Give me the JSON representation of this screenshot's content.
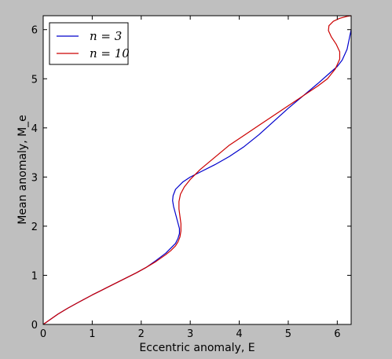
{
  "chart_data": {
    "type": "line",
    "title": "",
    "xlabel": "Eccentric anomaly, E",
    "ylabel": "Mean anomaly, M_e",
    "xlim": [
      0,
      6.2832
    ],
    "ylim": [
      0,
      6.2832
    ],
    "xticks": [
      0,
      1,
      2,
      3,
      4,
      5,
      6
    ],
    "yticks": [
      0,
      1,
      2,
      3,
      4,
      5,
      6
    ],
    "grid": false,
    "legend_position": "top-left",
    "series": [
      {
        "name": "n=3",
        "legend_text": "n = 3",
        "color": "#0000cc",
        "x": [
          0,
          0.1,
          0.2,
          0.3,
          0.5,
          0.7,
          1.0,
          1.3,
          1.6,
          1.9,
          2.1,
          2.3,
          2.5,
          2.6,
          2.7,
          2.75,
          2.78,
          2.78,
          2.74,
          2.7,
          2.66,
          2.64,
          2.65,
          2.7,
          2.85,
          3.0,
          3.2,
          3.5,
          3.8,
          4.1,
          4.4,
          4.7,
          5.0,
          5.3,
          5.6,
          5.85,
          6.0,
          6.1,
          6.2,
          6.2832
        ],
        "y": [
          0,
          0.07,
          0.14,
          0.21,
          0.33,
          0.44,
          0.6,
          0.75,
          0.9,
          1.05,
          1.16,
          1.3,
          1.45,
          1.55,
          1.65,
          1.75,
          1.85,
          1.95,
          2.1,
          2.25,
          2.4,
          2.52,
          2.62,
          2.75,
          2.9,
          3.0,
          3.1,
          3.25,
          3.42,
          3.62,
          3.86,
          4.13,
          4.4,
          4.65,
          4.9,
          5.12,
          5.25,
          5.38,
          5.6,
          6.0
        ]
      },
      {
        "name": "n=10",
        "legend_text": "n = 10",
        "color": "#cc0000",
        "x": [
          0,
          0.1,
          0.2,
          0.3,
          0.5,
          0.7,
          1.0,
          1.3,
          1.6,
          1.9,
          2.1,
          2.3,
          2.5,
          2.6,
          2.7,
          2.75,
          2.79,
          2.81,
          2.81,
          2.79,
          2.77,
          2.77,
          2.8,
          2.88,
          3.0,
          3.2,
          3.5,
          3.8,
          4.1,
          4.4,
          4.7,
          5.0,
          5.3,
          5.6,
          5.8,
          5.96,
          6.05,
          6.05,
          5.98,
          5.88,
          5.82,
          5.83,
          5.92,
          6.05,
          6.2,
          6.2832
        ],
        "y": [
          0,
          0.07,
          0.14,
          0.21,
          0.33,
          0.44,
          0.6,
          0.75,
          0.9,
          1.05,
          1.16,
          1.28,
          1.42,
          1.5,
          1.6,
          1.68,
          1.78,
          1.9,
          2.05,
          2.2,
          2.35,
          2.5,
          2.65,
          2.8,
          2.95,
          3.15,
          3.4,
          3.65,
          3.85,
          4.05,
          4.25,
          4.45,
          4.65,
          4.85,
          5.0,
          5.2,
          5.4,
          5.55,
          5.7,
          5.85,
          5.98,
          6.08,
          6.17,
          6.23,
          6.27,
          6.2832
        ]
      }
    ]
  }
}
